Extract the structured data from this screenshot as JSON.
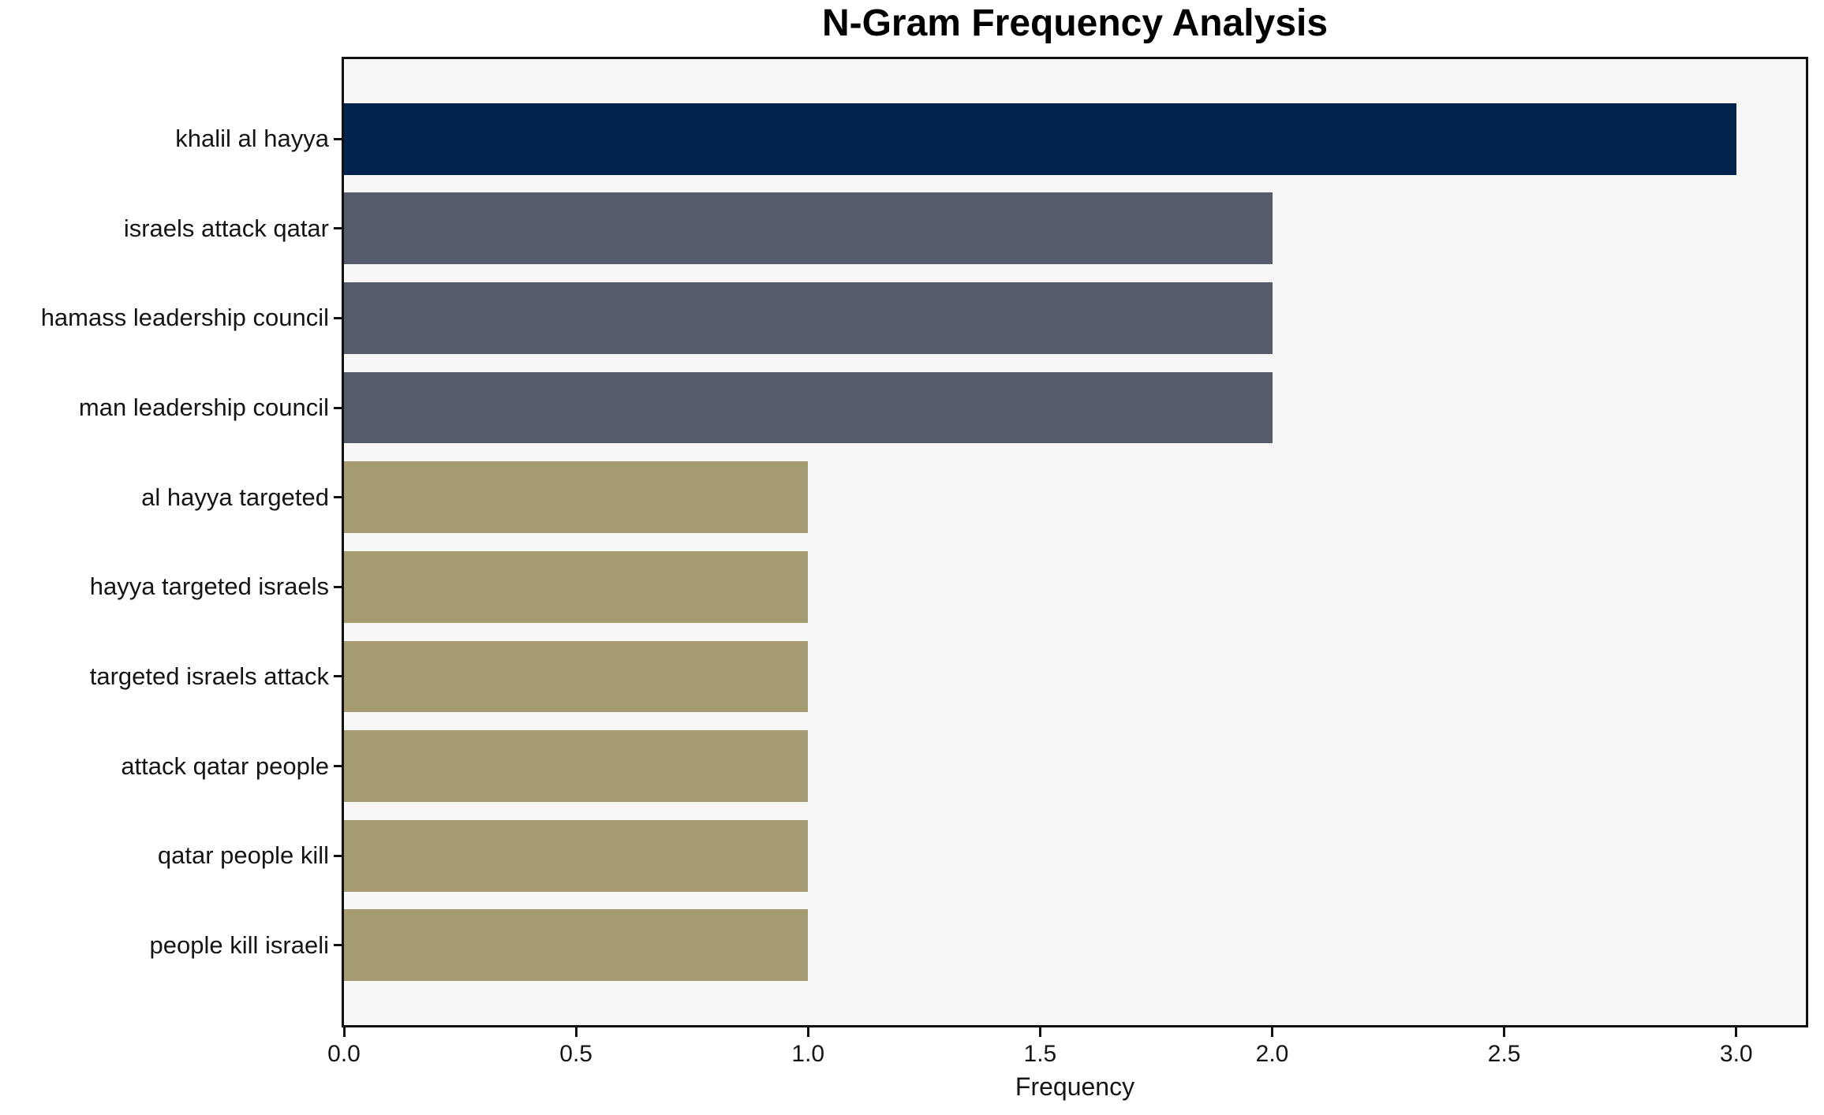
{
  "chart_data": {
    "type": "bar",
    "orientation": "horizontal",
    "title": "N-Gram Frequency Analysis",
    "xlabel": "Frequency",
    "ylabel": "",
    "categories": [
      "khalil al hayya",
      "israels attack qatar",
      "hamass leadership council",
      "man leadership council",
      "al hayya targeted",
      "hayya targeted israels",
      "targeted israels attack",
      "attack qatar people",
      "qatar people kill",
      "people kill israeli"
    ],
    "values": [
      3,
      2,
      2,
      2,
      1,
      1,
      1,
      1,
      1,
      1
    ],
    "bar_colors": [
      "#02234d",
      "#565b6b",
      "#565b6b",
      "#565b6b",
      "#a59c72",
      "#a59c72",
      "#a59c72",
      "#a59c72",
      "#a59c72",
      "#a59c72"
    ],
    "x_ticks": [
      "0.0",
      "0.5",
      "1.0",
      "1.5",
      "2.0",
      "2.5",
      "3.0"
    ],
    "x_tick_values": [
      0,
      0.5,
      1,
      1.5,
      2,
      2.5,
      3
    ],
    "xlim": [
      0,
      3.15
    ],
    "grid": false,
    "legend": "none",
    "colors": {
      "plot_background": "#f7f7f7",
      "figure_background": "#ffffff",
      "axis": "#111111",
      "text": "#151515"
    }
  }
}
